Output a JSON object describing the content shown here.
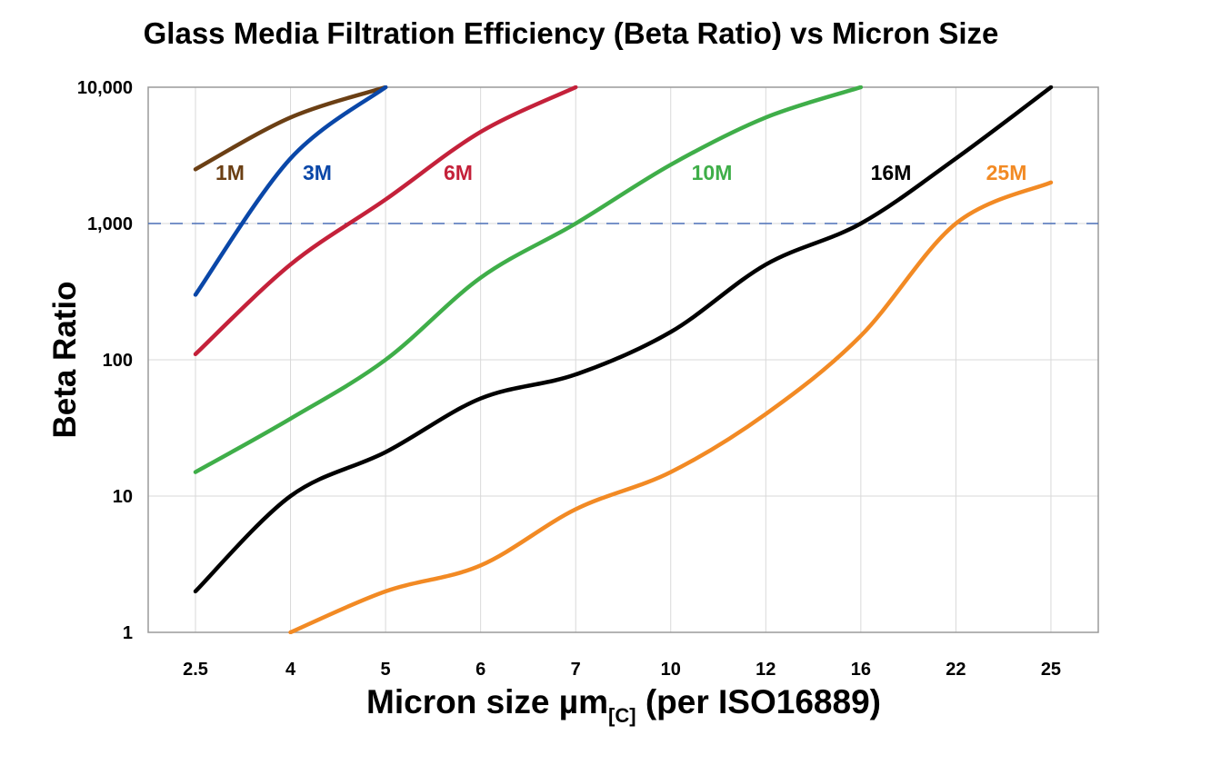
{
  "chart_data": {
    "type": "line",
    "title": "Glass Media Filtration Efficiency (Beta Ratio) vs Micron Size",
    "xlabel_main": "Micron size µm",
    "xlabel_sub": "[C]",
    "xlabel_tail": " (per ISO16889)",
    "ylabel": "Beta Ratio",
    "yscale": "log",
    "ylim": [
      1,
      10000
    ],
    "ytick_labels": [
      "1",
      "10",
      "100",
      "1,000",
      "10,000"
    ],
    "ytick_values": [
      1,
      10,
      100,
      1000,
      10000
    ],
    "categories": [
      "2.5",
      "4",
      "5",
      "6",
      "7",
      "10",
      "12",
      "16",
      "22",
      "25"
    ],
    "grid": true,
    "reference_line": {
      "value": 1000,
      "style": "dashed",
      "color": "#4a6fb5"
    },
    "series": [
      {
        "name": "1M",
        "color": "#6b3f14",
        "values": [
          2500,
          6000,
          10000,
          null,
          null,
          null,
          null,
          null,
          null,
          null
        ]
      },
      {
        "name": "3M",
        "color": "#0a47a8",
        "values": [
          300,
          3000,
          10000,
          null,
          null,
          null,
          null,
          null,
          null,
          null
        ]
      },
      {
        "name": "6M",
        "color": "#c4213a",
        "values": [
          110,
          500,
          1500,
          4700,
          10000,
          null,
          null,
          null,
          null,
          null
        ]
      },
      {
        "name": "10M",
        "color": "#3fae49",
        "values": [
          15,
          37,
          100,
          400,
          1000,
          2700,
          6000,
          10000,
          null,
          null
        ]
      },
      {
        "name": "16M",
        "color": "#000000",
        "values": [
          2,
          10,
          21,
          52,
          78,
          160,
          500,
          1000,
          3000,
          10000
        ]
      },
      {
        "name": "25M",
        "color": "#f28a24",
        "values": [
          null,
          1,
          2,
          3.1,
          8,
          15,
          40,
          150,
          1000,
          2000
        ]
      }
    ]
  }
}
